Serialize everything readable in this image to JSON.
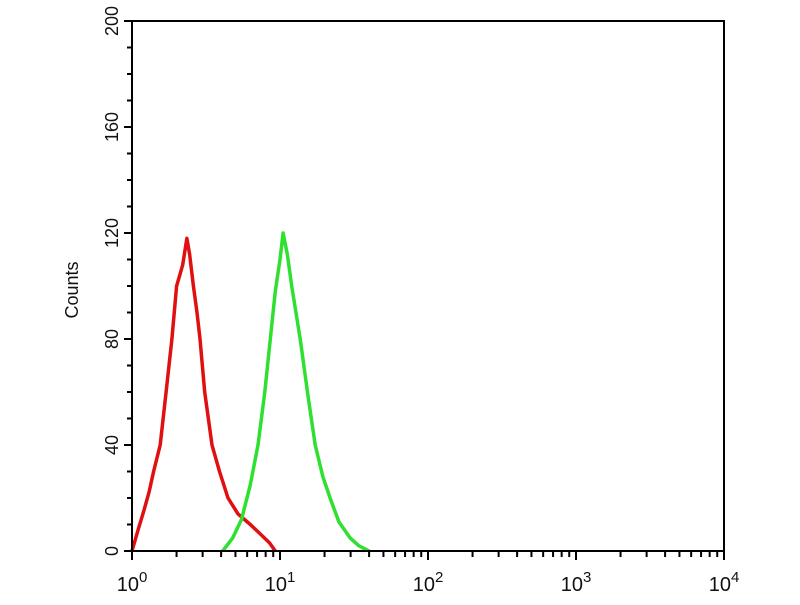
{
  "chart_data": {
    "type": "line",
    "title": "",
    "xlabel": "",
    "ylabel": "Counts",
    "x_scale": "log",
    "xlim": [
      1,
      10000
    ],
    "ylim": [
      0,
      200
    ],
    "grid": false,
    "y_ticks": [
      "0",
      "40",
      "80",
      "120",
      "160",
      "200"
    ],
    "x_ticks": [
      {
        "base": "10",
        "exp": "0"
      },
      {
        "base": "10",
        "exp": "1"
      },
      {
        "base": "10",
        "exp": "2"
      },
      {
        "base": "10",
        "exp": "3"
      },
      {
        "base": "10",
        "exp": "4"
      }
    ],
    "series": [
      {
        "color": "#e01010",
        "x": [
          1.0,
          1.1,
          1.2,
          1.3,
          1.4,
          1.55,
          1.7,
          1.86,
          2.0,
          2.1,
          2.2,
          2.35,
          2.45,
          2.6,
          2.75,
          2.88,
          3.1,
          3.47,
          3.9,
          4.45,
          5.2,
          6.3,
          7.5,
          8.5,
          9.3
        ],
        "y": [
          0,
          8,
          15,
          22,
          30,
          40,
          60,
          80,
          100,
          104,
          108,
          118,
          112,
          100,
          90,
          80,
          60,
          40,
          30,
          20,
          14,
          10,
          6,
          3,
          0
        ]
      },
      {
        "color": "#30e030",
        "x": [
          4.1,
          4.8,
          5.5,
          6.3,
          7.1,
          7.9,
          8.6,
          9.3,
          10.0,
          10.5,
          11.2,
          12.0,
          13.7,
          15.5,
          17.3,
          19.5,
          21.8,
          25.0,
          29.7,
          34.0,
          40.0
        ],
        "y": [
          0,
          5,
          12,
          25,
          40,
          60,
          80,
          98,
          110,
          120,
          112,
          100,
          80,
          58,
          40,
          28,
          20,
          11,
          5,
          2,
          0
        ]
      }
    ]
  }
}
